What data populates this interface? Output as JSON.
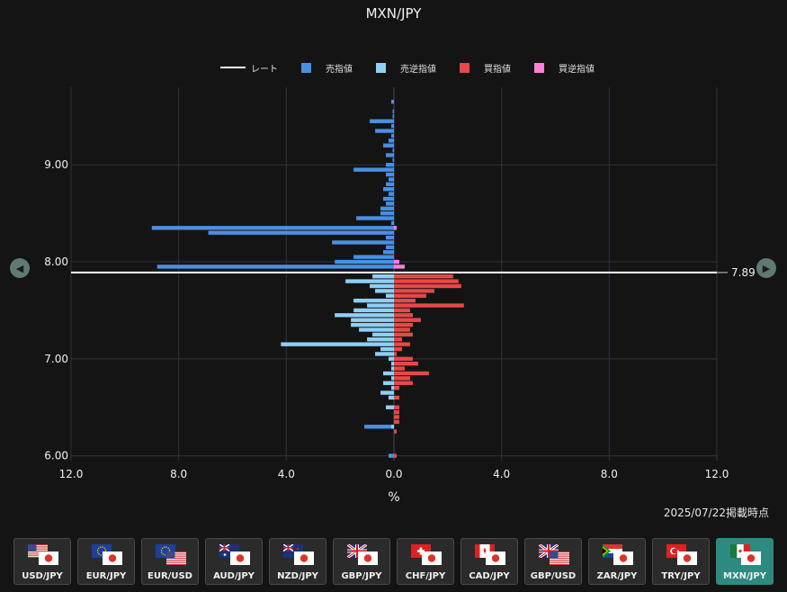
{
  "pair_title": "MXN/JPY",
  "legend": {
    "rate": "レート",
    "sell_limit": "売指値",
    "sell_stop": "売逆指値",
    "buy_limit": "買指値",
    "buy_stop": "買逆指値"
  },
  "colors": {
    "sell_limit": "#4a90e2",
    "sell_stop": "#8fd0f5",
    "buy_limit": "#e84848",
    "buy_stop": "#ff80d8",
    "rate": "#ffffff"
  },
  "current_rate_label": "7.89",
  "x_axis_title": "%",
  "timestamp": "2025/07/22掲載時点",
  "nav": {
    "prev_icon": "◀",
    "next_icon": "▶"
  },
  "chart_data": {
    "type": "bar",
    "orientation": "horizontal-butterfly",
    "title": "MXN/JPY",
    "xlabel": "%",
    "x_tick_labels": [
      "12.0",
      "8.0",
      "4.0",
      "0.0",
      "4.0",
      "8.0",
      "12.0"
    ],
    "y_tick_labels": [
      "6.00",
      "7.00",
      "8.00",
      "9.00"
    ],
    "y_ticks": [
      6.0,
      7.0,
      8.0,
      9.0
    ],
    "xlim": [
      -12,
      12
    ],
    "ylim": [
      5.95,
      9.8
    ],
    "bin_step": 0.05,
    "current_rate": 7.89,
    "grid": true,
    "legend_position": "top-center",
    "sell_limit": [
      [
        7.95,
        8.8
      ],
      [
        8.0,
        2.2
      ],
      [
        8.05,
        1.5
      ],
      [
        8.1,
        0.4
      ],
      [
        8.15,
        0.3
      ],
      [
        8.2,
        2.3
      ],
      [
        8.25,
        0.3
      ],
      [
        8.3,
        6.9
      ],
      [
        8.35,
        9.0
      ],
      [
        8.4,
        0.1
      ],
      [
        8.45,
        1.4
      ],
      [
        8.5,
        0.5
      ],
      [
        8.55,
        0.5
      ],
      [
        8.6,
        0.3
      ],
      [
        8.65,
        0.4
      ],
      [
        8.7,
        0.2
      ],
      [
        8.75,
        0.4
      ],
      [
        8.8,
        0.3
      ],
      [
        8.85,
        0.2
      ],
      [
        8.9,
        0.3
      ],
      [
        8.95,
        1.5
      ],
      [
        9.0,
        0.3
      ],
      [
        9.05,
        0.05
      ],
      [
        9.1,
        0.3
      ],
      [
        9.15,
        0.05
      ],
      [
        9.2,
        0.4
      ],
      [
        9.25,
        0.2
      ],
      [
        9.3,
        0.1
      ],
      [
        9.35,
        0.7
      ],
      [
        9.4,
        0.1
      ],
      [
        9.45,
        0.9
      ],
      [
        9.5,
        0.05
      ],
      [
        9.55,
        0.05
      ],
      [
        9.65,
        0.1
      ],
      [
        6.3,
        1.1
      ],
      [
        6.0,
        0.2
      ]
    ],
    "sell_stop": [
      [
        7.85,
        0.8
      ],
      [
        7.8,
        1.8
      ],
      [
        7.75,
        0.9
      ],
      [
        7.7,
        0.7
      ],
      [
        7.65,
        0.3
      ],
      [
        7.6,
        1.5
      ],
      [
        7.55,
        1.0
      ],
      [
        7.5,
        1.5
      ],
      [
        7.45,
        2.2
      ],
      [
        7.4,
        1.6
      ],
      [
        7.35,
        1.6
      ],
      [
        7.3,
        1.3
      ],
      [
        7.25,
        0.8
      ],
      [
        7.2,
        1.0
      ],
      [
        7.15,
        4.2
      ],
      [
        7.1,
        0.5
      ],
      [
        7.05,
        0.7
      ],
      [
        7.0,
        0.2
      ],
      [
        6.95,
        0.1
      ],
      [
        6.9,
        0.1
      ],
      [
        6.85,
        0.4
      ],
      [
        6.8,
        0.1
      ],
      [
        6.75,
        0.4
      ],
      [
        6.7,
        0.1
      ],
      [
        6.65,
        0.5
      ],
      [
        6.6,
        0.2
      ],
      [
        6.5,
        0.3
      ],
      [
        6.3,
        0.1
      ]
    ],
    "buy_limit": [
      [
        7.85,
        2.2
      ],
      [
        7.8,
        2.4
      ],
      [
        7.75,
        2.5
      ],
      [
        7.7,
        1.5
      ],
      [
        7.65,
        1.2
      ],
      [
        7.6,
        0.8
      ],
      [
        7.55,
        2.6
      ],
      [
        7.5,
        0.6
      ],
      [
        7.45,
        0.7
      ],
      [
        7.4,
        1.0
      ],
      [
        7.35,
        0.7
      ],
      [
        7.3,
        0.6
      ],
      [
        7.25,
        0.7
      ],
      [
        7.2,
        0.3
      ],
      [
        7.15,
        0.6
      ],
      [
        7.1,
        0.3
      ],
      [
        7.05,
        0.1
      ],
      [
        7.0,
        0.7
      ],
      [
        6.95,
        0.9
      ],
      [
        6.9,
        0.4
      ],
      [
        6.85,
        1.3
      ],
      [
        6.8,
        0.6
      ],
      [
        6.75,
        0.7
      ],
      [
        6.7,
        0.2
      ],
      [
        6.6,
        0.2
      ],
      [
        6.5,
        0.2
      ],
      [
        6.45,
        0.2
      ],
      [
        6.4,
        0.2
      ],
      [
        6.35,
        0.2
      ],
      [
        6.25,
        0.1
      ],
      [
        6.0,
        0.1
      ]
    ],
    "buy_stop": [
      [
        7.95,
        0.4
      ],
      [
        8.0,
        0.2
      ],
      [
        8.35,
        0.1
      ]
    ]
  },
  "tabs": [
    {
      "label": "USD/JPY",
      "flag1": "us",
      "flag2": "jp"
    },
    {
      "label": "EUR/JPY",
      "flag1": "eu",
      "flag2": "jp"
    },
    {
      "label": "EUR/USD",
      "flag1": "eu",
      "flag2": "us"
    },
    {
      "label": "AUD/JPY",
      "flag1": "au",
      "flag2": "jp"
    },
    {
      "label": "NZD/JPY",
      "flag1": "nz",
      "flag2": "jp"
    },
    {
      "label": "GBP/JPY",
      "flag1": "gb",
      "flag2": "jp"
    },
    {
      "label": "CHF/JPY",
      "flag1": "ch",
      "flag2": "jp"
    },
    {
      "label": "CAD/JPY",
      "flag1": "ca",
      "flag2": "jp"
    },
    {
      "label": "GBP/USD",
      "flag1": "gb",
      "flag2": "us"
    },
    {
      "label": "ZAR/JPY",
      "flag1": "za",
      "flag2": "jp"
    },
    {
      "label": "TRY/JPY",
      "flag1": "tr",
      "flag2": "jp"
    },
    {
      "label": "MXN/JPY",
      "flag1": "mx",
      "flag2": "jp",
      "active": true
    }
  ]
}
